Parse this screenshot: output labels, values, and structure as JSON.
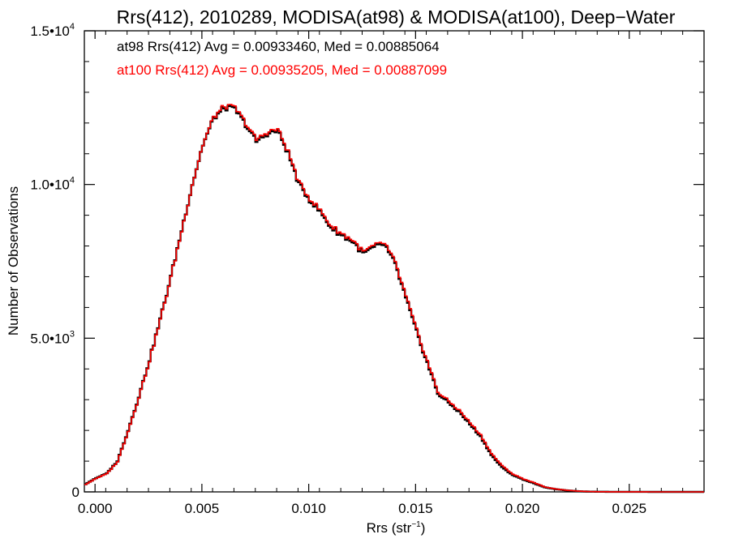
{
  "chart_data": {
    "type": "line",
    "title": "Rrs(412), 2010289, MODISA(at98) & MODISA(at100), Deep−Water",
    "xlabel_main": "Rrs (str",
    "xlabel_sup": "−1",
    "xlabel_end": ")",
    "ylabel": "Number of Observations",
    "xlim": [
      -0.0005,
      0.0285
    ],
    "ylim": [
      0,
      15000
    ],
    "x_ticks": [
      {
        "value": 0.0,
        "label": "0.000"
      },
      {
        "value": 0.005,
        "label": "0.005"
      },
      {
        "value": 0.01,
        "label": "0.010"
      },
      {
        "value": 0.015,
        "label": "0.015"
      },
      {
        "value": 0.02,
        "label": "0.020"
      },
      {
        "value": 0.025,
        "label": "0.025"
      }
    ],
    "y_ticks": [
      {
        "value": 0,
        "base": "0",
        "exp": ""
      },
      {
        "value": 5000,
        "base": "5.0•10",
        "exp": "3"
      },
      {
        "value": 10000,
        "base": "1.0•10",
        "exp": "4"
      },
      {
        "value": 15000,
        "base": "1.5•10",
        "exp": "4"
      }
    ],
    "series": [
      {
        "name": "at98",
        "color": "#000000",
        "annotation": "at98 Rrs(412) Avg = 0.00933460, Med = 0.00885064",
        "x": [
          -0.0005,
          0.0,
          0.0005,
          0.001,
          0.0015,
          0.002,
          0.0025,
          0.003,
          0.0035,
          0.004,
          0.0045,
          0.005,
          0.0055,
          0.006,
          0.0065,
          0.007,
          0.0075,
          0.008,
          0.0085,
          0.009,
          0.0095,
          0.01,
          0.0105,
          0.011,
          0.0115,
          0.012,
          0.0125,
          0.013,
          0.0135,
          0.014,
          0.0145,
          0.015,
          0.0155,
          0.016,
          0.0165,
          0.017,
          0.0175,
          0.018,
          0.0185,
          0.019,
          0.0195,
          0.02,
          0.0205,
          0.021,
          0.0215,
          0.022,
          0.0225,
          0.023,
          0.0235,
          0.024,
          0.0245,
          0.025,
          0.0255,
          0.026,
          0.0265,
          0.027,
          0.0275,
          0.028,
          0.0285
        ],
        "y": [
          250,
          450,
          600,
          1000,
          2000,
          3100,
          4300,
          5600,
          7000,
          8500,
          10000,
          11300,
          12150,
          12500,
          12450,
          11950,
          11400,
          11650,
          11750,
          11000,
          10000,
          9500,
          9100,
          8600,
          8350,
          8150,
          7750,
          7950,
          8050,
          7400,
          6300,
          5200,
          4200,
          3200,
          2900,
          2600,
          2200,
          1800,
          1200,
          800,
          550,
          400,
          280,
          150,
          90,
          50,
          25,
          10,
          5,
          3,
          2,
          1,
          1,
          0,
          0,
          0,
          0,
          0,
          0
        ]
      },
      {
        "name": "at100",
        "color": "#ff0000",
        "annotation": "at100 Rrs(412) Avg = 0.00935205, Med = 0.00887099",
        "x": [
          -0.0005,
          0.0,
          0.0005,
          0.001,
          0.0015,
          0.002,
          0.0025,
          0.003,
          0.0035,
          0.004,
          0.0045,
          0.005,
          0.0055,
          0.006,
          0.0065,
          0.007,
          0.0075,
          0.008,
          0.0085,
          0.009,
          0.0095,
          0.01,
          0.0105,
          0.011,
          0.0115,
          0.012,
          0.0125,
          0.013,
          0.0135,
          0.014,
          0.0145,
          0.015,
          0.0155,
          0.016,
          0.0165,
          0.017,
          0.0175,
          0.018,
          0.0185,
          0.019,
          0.0195,
          0.02,
          0.0205,
          0.021,
          0.0215,
          0.022,
          0.0225,
          0.023,
          0.0235,
          0.024,
          0.0245,
          0.025,
          0.0255,
          0.026,
          0.0265,
          0.027,
          0.0275,
          0.028,
          0.0285
        ],
        "y": [
          240,
          440,
          590,
          980,
          1980,
          3080,
          4280,
          5580,
          6980,
          8480,
          10000,
          11300,
          12180,
          12550,
          12500,
          12000,
          11450,
          11700,
          11800,
          11050,
          10050,
          9550,
          9150,
          8650,
          8400,
          8200,
          7800,
          8000,
          8100,
          7450,
          6350,
          5250,
          4250,
          3250,
          2950,
          2650,
          2250,
          1850,
          1250,
          850,
          580,
          420,
          300,
          160,
          95,
          55,
          28,
          12,
          6,
          3,
          2,
          1,
          1,
          0,
          0,
          0,
          0,
          0,
          0
        ]
      }
    ],
    "grid": false,
    "legend": "top-left"
  }
}
